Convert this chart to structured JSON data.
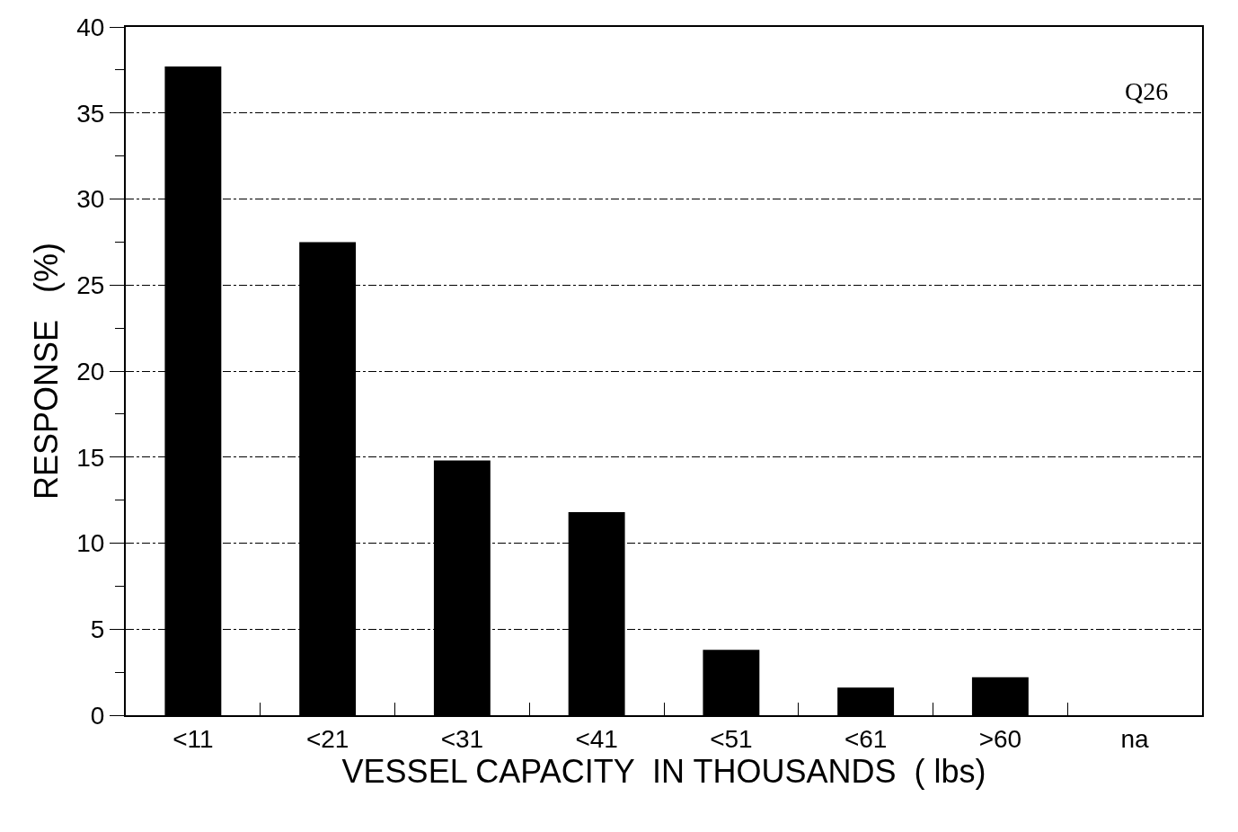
{
  "chart_data": {
    "type": "bar",
    "categories": [
      "<11",
      "<21",
      "<31",
      "<41",
      "<51",
      "<61",
      ">60",
      "na"
    ],
    "values": [
      37.7,
      27.5,
      14.8,
      11.8,
      3.8,
      1.6,
      2.2,
      0
    ],
    "color": "#000000",
    "xlabel": "VESSEL CAPACITY  IN THOUSANDS  ( lbs)",
    "ylabel": "RESPONSE   (%)",
    "ylim": [
      0,
      40
    ],
    "yticks": [
      0,
      5,
      10,
      15,
      20,
      25,
      30,
      35,
      40
    ],
    "grid": "y",
    "line_style": "dashed",
    "annotations": [
      "Q26"
    ],
    "legend": false
  }
}
